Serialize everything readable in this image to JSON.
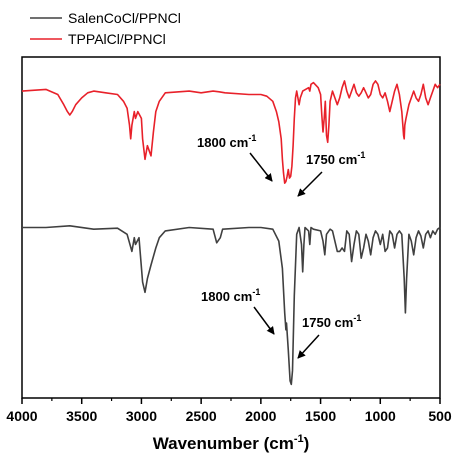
{
  "chart_data": {
    "type": "line",
    "title": "",
    "xlabel": "Wavenumber (cm",
    "xlabel_sup": "-1",
    "xlabel_end": ")",
    "ylabel": "",
    "x_reversed": true,
    "xlim": [
      4000,
      500
    ],
    "x_ticks": [
      4000,
      3500,
      3000,
      2500,
      2000,
      1500,
      1000,
      500
    ],
    "x_tick_labels": [
      "4000",
      "3500",
      "3000",
      "2500",
      "2000",
      "1500",
      "1000",
      "500"
    ],
    "y_axis_shown": false,
    "ylim": [
      0,
      100
    ],
    "grid": false,
    "legend_position": "top-left",
    "series": [
      {
        "name": "SalenCoCl/PPNCl",
        "color": "#404040",
        "points": [
          [
            4000,
            50
          ],
          [
            3800,
            50
          ],
          [
            3600,
            50.5
          ],
          [
            3400,
            49.5
          ],
          [
            3200,
            49.8
          ],
          [
            3120,
            48
          ],
          [
            3080,
            43
          ],
          [
            3060,
            47
          ],
          [
            3050,
            45
          ],
          [
            3020,
            47
          ],
          [
            2990,
            34
          ],
          [
            2970,
            31
          ],
          [
            2950,
            35
          ],
          [
            2920,
            39
          ],
          [
            2880,
            44
          ],
          [
            2850,
            47
          ],
          [
            2800,
            49
          ],
          [
            2600,
            50
          ],
          [
            2400,
            49.5
          ],
          [
            2370,
            45.5
          ],
          [
            2340,
            47
          ],
          [
            2320,
            49.5
          ],
          [
            2100,
            50
          ],
          [
            2000,
            50
          ],
          [
            1900,
            49.5
          ],
          [
            1850,
            46
          ],
          [
            1820,
            38
          ],
          [
            1800,
            25
          ],
          [
            1790,
            20
          ],
          [
            1785,
            22
          ],
          [
            1770,
            14
          ],
          [
            1755,
            5
          ],
          [
            1745,
            4
          ],
          [
            1735,
            8
          ],
          [
            1720,
            30
          ],
          [
            1700,
            48
          ],
          [
            1680,
            50
          ],
          [
            1660,
            45
          ],
          [
            1650,
            37
          ],
          [
            1640,
            45
          ],
          [
            1630,
            50
          ],
          [
            1600,
            49
          ],
          [
            1590,
            45
          ],
          [
            1580,
            50
          ],
          [
            1560,
            49.5
          ],
          [
            1500,
            49
          ],
          [
            1480,
            46
          ],
          [
            1465,
            42
          ],
          [
            1450,
            48
          ],
          [
            1420,
            49.5
          ],
          [
            1400,
            49
          ],
          [
            1360,
            43
          ],
          [
            1340,
            43
          ],
          [
            1320,
            44
          ],
          [
            1300,
            43
          ],
          [
            1280,
            49
          ],
          [
            1260,
            48
          ],
          [
            1240,
            40
          ],
          [
            1220,
            45
          ],
          [
            1200,
            49
          ],
          [
            1180,
            48
          ],
          [
            1160,
            41
          ],
          [
            1140,
            44
          ],
          [
            1120,
            48
          ],
          [
            1100,
            46
          ],
          [
            1080,
            42
          ],
          [
            1060,
            47
          ],
          [
            1040,
            49
          ],
          [
            1020,
            48
          ],
          [
            1000,
            45
          ],
          [
            980,
            48
          ],
          [
            960,
            43
          ],
          [
            940,
            44
          ],
          [
            920,
            49
          ],
          [
            900,
            48
          ],
          [
            880,
            44
          ],
          [
            860,
            48
          ],
          [
            840,
            49
          ],
          [
            820,
            48
          ],
          [
            800,
            35
          ],
          [
            790,
            25
          ],
          [
            780,
            35
          ],
          [
            760,
            48
          ],
          [
            740,
            46
          ],
          [
            720,
            42
          ],
          [
            700,
            47
          ],
          [
            680,
            49
          ],
          [
            660,
            47.5
          ],
          [
            640,
            44
          ],
          [
            620,
            48
          ],
          [
            600,
            49
          ],
          [
            580,
            47
          ],
          [
            560,
            49
          ],
          [
            540,
            48
          ],
          [
            520,
            49.5
          ],
          [
            500,
            50
          ]
        ]
      },
      {
        "name": "TPPAlCl/PPNCl",
        "color": "#e8212a",
        "points": [
          [
            4000,
            90
          ],
          [
            3800,
            90.5
          ],
          [
            3700,
            89
          ],
          [
            3650,
            86
          ],
          [
            3620,
            84
          ],
          [
            3600,
            83
          ],
          [
            3580,
            84
          ],
          [
            3550,
            86
          ],
          [
            3500,
            88
          ],
          [
            3450,
            89.5
          ],
          [
            3400,
            90
          ],
          [
            3300,
            89.5
          ],
          [
            3200,
            89
          ],
          [
            3150,
            87
          ],
          [
            3120,
            85
          ],
          [
            3100,
            80
          ],
          [
            3090,
            76
          ],
          [
            3080,
            80
          ],
          [
            3060,
            84
          ],
          [
            3050,
            82
          ],
          [
            3030,
            84
          ],
          [
            3000,
            82
          ],
          [
            2990,
            76
          ],
          [
            2970,
            70
          ],
          [
            2950,
            74
          ],
          [
            2920,
            71
          ],
          [
            2900,
            78
          ],
          [
            2880,
            84
          ],
          [
            2850,
            87
          ],
          [
            2800,
            89.5
          ],
          [
            2600,
            90
          ],
          [
            2500,
            89.5
          ],
          [
            2400,
            90
          ],
          [
            2350,
            89.8
          ],
          [
            2300,
            89.5
          ],
          [
            2100,
            89
          ],
          [
            2000,
            89
          ],
          [
            1950,
            88.5
          ],
          [
            1900,
            87
          ],
          [
            1870,
            84
          ],
          [
            1850,
            81
          ],
          [
            1830,
            76
          ],
          [
            1820,
            70
          ],
          [
            1810,
            66
          ],
          [
            1800,
            63
          ],
          [
            1790,
            63.5
          ],
          [
            1780,
            65
          ],
          [
            1770,
            67
          ],
          [
            1760,
            64.5
          ],
          [
            1750,
            65
          ],
          [
            1740,
            68
          ],
          [
            1730,
            74
          ],
          [
            1720,
            82
          ],
          [
            1710,
            88
          ],
          [
            1700,
            90
          ],
          [
            1690,
            88
          ],
          [
            1680,
            86
          ],
          [
            1670,
            88
          ],
          [
            1650,
            90
          ],
          [
            1600,
            91
          ],
          [
            1590,
            90
          ],
          [
            1580,
            92
          ],
          [
            1560,
            92.5
          ],
          [
            1520,
            91
          ],
          [
            1500,
            89
          ],
          [
            1490,
            83
          ],
          [
            1480,
            78
          ],
          [
            1470,
            82
          ],
          [
            1460,
            87
          ],
          [
            1450,
            77
          ],
          [
            1440,
            75
          ],
          [
            1430,
            80
          ],
          [
            1420,
            87
          ],
          [
            1400,
            90
          ],
          [
            1380,
            88
          ],
          [
            1360,
            86
          ],
          [
            1340,
            88
          ],
          [
            1320,
            91
          ],
          [
            1300,
            93
          ],
          [
            1280,
            90
          ],
          [
            1260,
            88
          ],
          [
            1240,
            90
          ],
          [
            1220,
            92
          ],
          [
            1200,
            89.5
          ],
          [
            1180,
            88.5
          ],
          [
            1160,
            89.5
          ],
          [
            1140,
            91
          ],
          [
            1120,
            89.5
          ],
          [
            1100,
            88
          ],
          [
            1080,
            89
          ],
          [
            1060,
            92
          ],
          [
            1040,
            93
          ],
          [
            1020,
            92
          ],
          [
            1000,
            89
          ],
          [
            980,
            88
          ],
          [
            960,
            89.5
          ],
          [
            940,
            87
          ],
          [
            920,
            84
          ],
          [
            900,
            87
          ],
          [
            880,
            90
          ],
          [
            860,
            92
          ],
          [
            840,
            89
          ],
          [
            820,
            84
          ],
          [
            805,
            77
          ],
          [
            800,
            76
          ],
          [
            795,
            80
          ],
          [
            785,
            82
          ],
          [
            760,
            86
          ],
          [
            740,
            88
          ],
          [
            720,
            90
          ],
          [
            700,
            88
          ],
          [
            680,
            87
          ],
          [
            660,
            89
          ],
          [
            640,
            92
          ],
          [
            620,
            88
          ],
          [
            600,
            86
          ],
          [
            580,
            88
          ],
          [
            560,
            90
          ],
          [
            540,
            92
          ],
          [
            520,
            91
          ],
          [
            500,
            92
          ]
        ]
      }
    ],
    "annotations": [
      {
        "label": "1800 cm",
        "sup": "-1",
        "series": "TPPAlCl/PPNCl",
        "x": 1800
      },
      {
        "label": "1750 cm",
        "sup": "-1",
        "series": "TPPAlCl/PPNCl",
        "x": 1750
      },
      {
        "label": "1800 cm",
        "sup": "-1",
        "series": "SalenCoCl/PPNCl",
        "x": 1800
      },
      {
        "label": "1750 cm",
        "sup": "-1",
        "series": "SalenCoCl/PPNCl",
        "x": 1750
      }
    ]
  }
}
